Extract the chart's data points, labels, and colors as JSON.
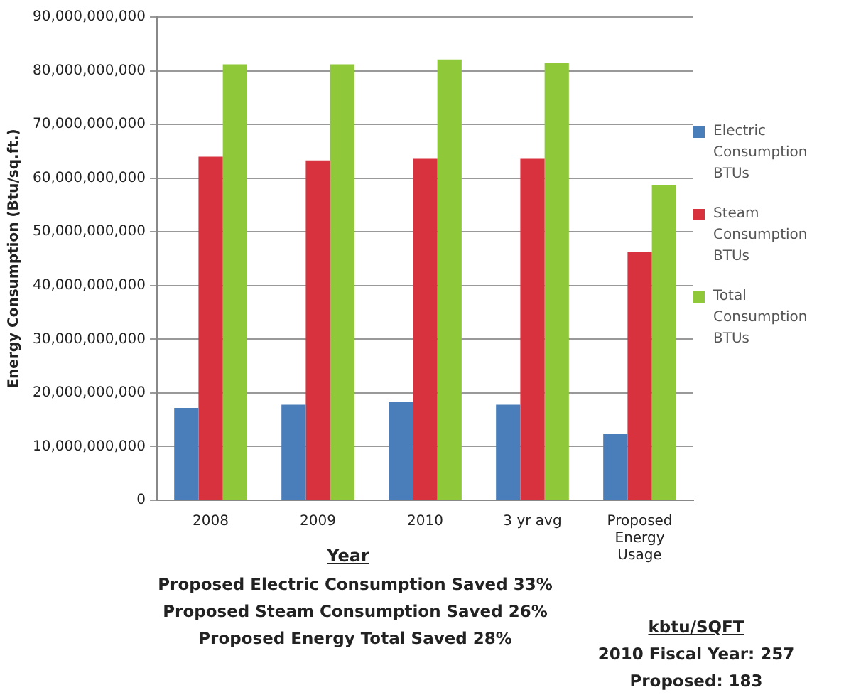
{
  "chart_data": {
    "type": "bar",
    "xlabel": "Year",
    "ylabel": "Energy Consumption (Btu/sq.ft.)",
    "categories": [
      "2008",
      "2009",
      "2010",
      "3 yr avg",
      "Proposed Energy Usage"
    ],
    "series": [
      {
        "name": "Electric Consumption BTUs",
        "color": "#4a7ebb",
        "values": [
          17200000000,
          17800000000,
          18300000000,
          17800000000,
          12300000000
        ]
      },
      {
        "name": "Steam Consumption BTUs",
        "color": "#d9323f",
        "values": [
          64000000000,
          63300000000,
          63600000000,
          63600000000,
          46300000000
        ]
      },
      {
        "name": "Total Consumption BTUs",
        "color": "#8fc93a",
        "values": [
          81200000000,
          81200000000,
          82100000000,
          81500000000,
          58700000000
        ]
      }
    ],
    "ylim": [
      0,
      90000000000
    ],
    "yticks": [
      0,
      {
        "value": 10000000000,
        "label": "10,000,000,000"
      },
      {
        "value": 20000000000,
        "label": "20,000,000,000"
      },
      {
        "value": 30000000000,
        "label": "30,000,000,000"
      },
      {
        "value": 40000000000,
        "label": "40,000,000,000"
      },
      {
        "value": 50000000000,
        "label": "50,000,000,000"
      },
      {
        "value": 60000000000,
        "label": "60,000,000,000"
      },
      {
        "value": 70000000000,
        "label": "70,000,000,000"
      },
      {
        "value": 80000000000,
        "label": "80,000,000,000"
      },
      {
        "value": 90000000000,
        "label": "90,000,000,000"
      }
    ],
    "grid": "y",
    "legend": "right",
    "annotations": [
      "Proposed Electric Consumption Saved 33%",
      "Proposed Steam Consumption Saved 26%",
      "Proposed Energy Total Saved 28%",
      "kbtu/SQFT",
      "2010 Fiscal Year: 257",
      "Proposed: 183"
    ]
  }
}
